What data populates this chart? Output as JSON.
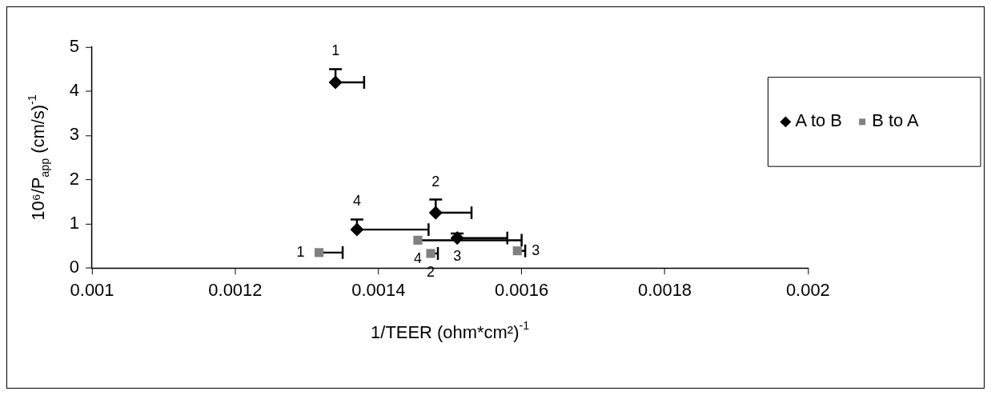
{
  "chart_data": {
    "type": "scatter",
    "xlabel": "1/TEER (ohm*cm²)$^{-1}$",
    "ylabel": "10⁶/P$_{app}$ (cm/s)$^{-1}$",
    "xlim": [
      0.001,
      0.002
    ],
    "xticks": [
      0.001,
      0.0012,
      0.0014,
      0.0016,
      0.0018,
      0.002
    ],
    "ylim": [
      0,
      5
    ],
    "yticks": [
      0,
      1,
      2,
      3,
      4,
      5
    ],
    "grid": false,
    "legend": "right",
    "series": [
      {
        "name": "A to B",
        "color": "#000000",
        "marker": "diamond",
        "x": [
          0.00134,
          0.00148,
          0.00151,
          0.00137
        ],
        "values": [
          4.2,
          1.25,
          0.68,
          0.87
        ],
        "errors": [
          [
            4.2,
            4.5
          ],
          [
            1.25,
            1.55
          ],
          [
            0.68,
            0.78
          ],
          [
            0.87,
            1.1
          ]
        ],
        "xerrors": [
          [
            0.00134,
            0.00138
          ],
          [
            0.00148,
            0.00153
          ],
          [
            0.00151,
            0.00158
          ],
          [
            0.00137,
            0.00147
          ]
        ]
      },
      {
        "name": "B to A",
        "color": "#808080",
        "marker": "square",
        "x": [
          0.001317,
          0.001473,
          0.001594,
          0.001455
        ],
        "values": [
          0.35,
          0.33,
          0.39,
          0.63
        ],
        "errors": [
          null,
          null,
          null,
          null
        ],
        "xerrors": [
          [
            0.001317,
            0.00135
          ],
          [
            0.001473,
            0.001483
          ],
          [
            0.001594,
            0.001605
          ],
          [
            0.001455,
            0.0016
          ]
        ]
      }
    ],
    "annotations": [
      {
        "text": "1",
        "x": 0.00134,
        "y": 4.2
      },
      {
        "text": "2",
        "x": 0.00148,
        "y": 1.25
      },
      {
        "text": "3",
        "x": 0.00151,
        "y": 0.68
      },
      {
        "text": "4",
        "x": 0.00137,
        "y": 0.87
      },
      {
        "text": "1",
        "x": 0.001317,
        "y": 0.35
      },
      {
        "text": "2",
        "x": 0.001473,
        "y": 0.33
      },
      {
        "text": "3",
        "x": 0.001594,
        "y": 0.39
      },
      {
        "text": "4",
        "x": 0.001455,
        "y": 0.63
      }
    ]
  }
}
